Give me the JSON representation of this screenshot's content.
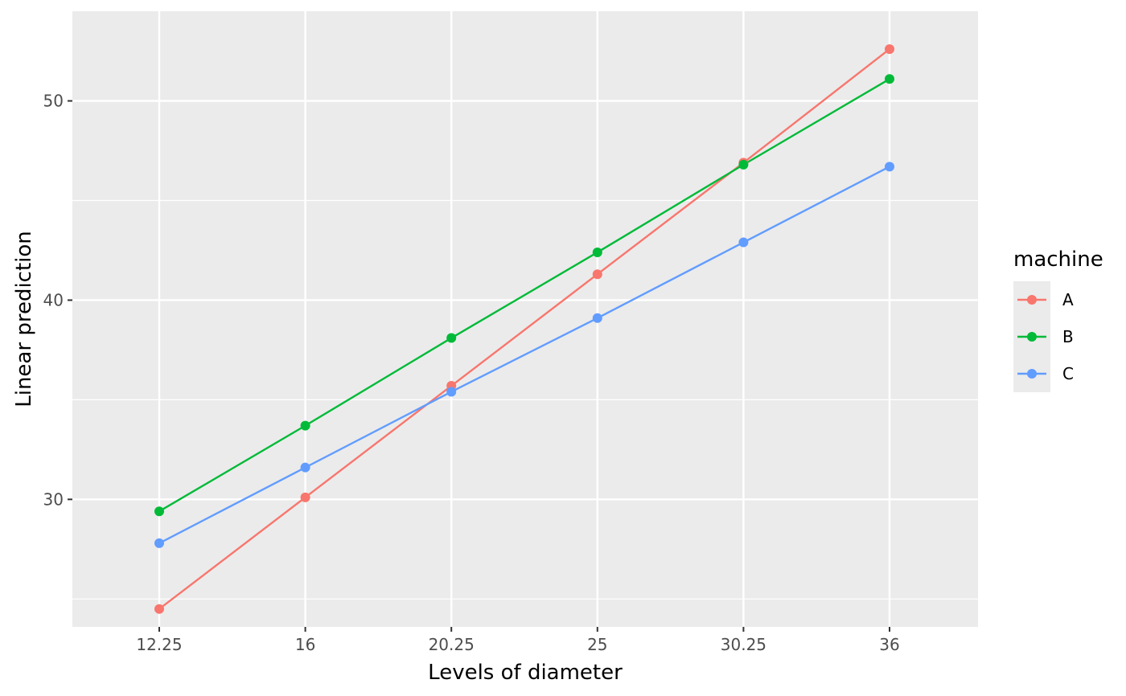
{
  "chart_data": {
    "type": "line",
    "title": "",
    "xlabel": "Levels of diameter",
    "ylabel": "Linear prediction",
    "categories": [
      "12.25",
      "16",
      "20.25",
      "25",
      "30.25",
      "36"
    ],
    "ylim": [
      23.6,
      54.5
    ],
    "yticks": [
      30,
      40,
      50
    ],
    "yminor": [
      25,
      35,
      45
    ],
    "grid": true,
    "legend": {
      "title": "machine",
      "position": "right"
    },
    "series": [
      {
        "name": "A",
        "color": "#F8766D",
        "values": [
          24.5,
          30.1,
          35.7,
          41.3,
          46.9,
          52.6
        ]
      },
      {
        "name": "B",
        "color": "#00BA38",
        "values": [
          29.4,
          33.7,
          38.1,
          42.4,
          46.8,
          51.1
        ]
      },
      {
        "name": "C",
        "color": "#619CFF",
        "values": [
          27.8,
          31.6,
          35.4,
          39.1,
          42.9,
          46.7
        ]
      }
    ],
    "colors": {
      "panel_background": "#EBEBEB",
      "grid_line": "#FFFFFF",
      "tick_mark": "#333333"
    }
  }
}
